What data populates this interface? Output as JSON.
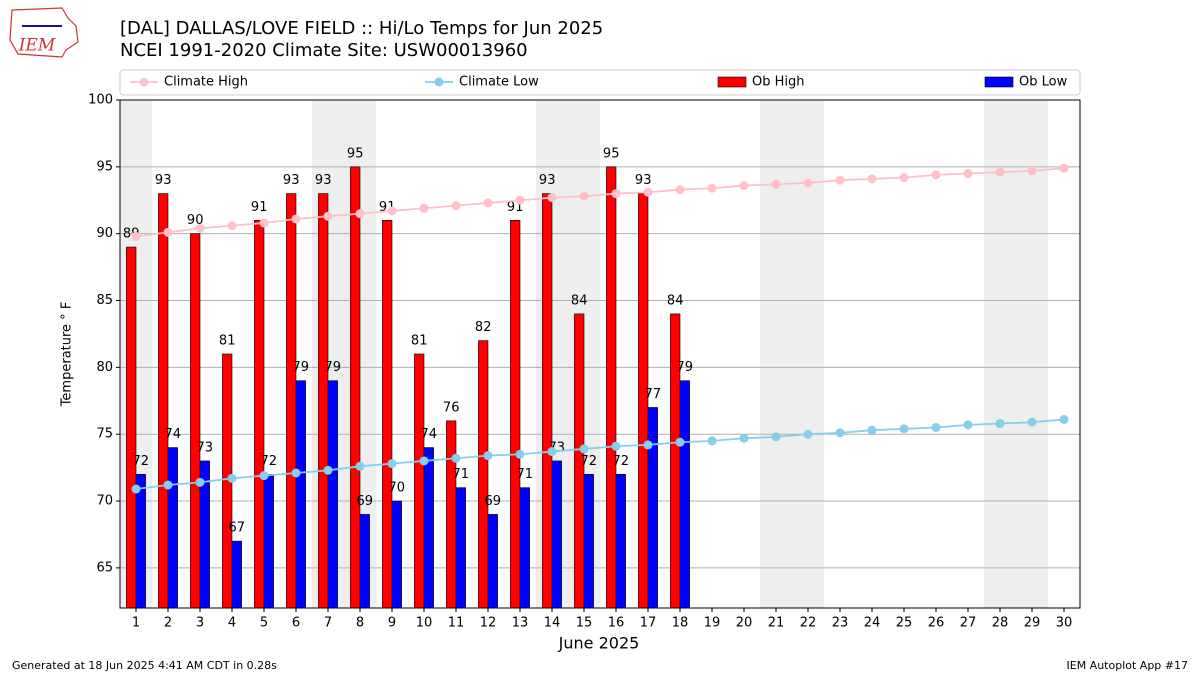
{
  "chart_data": {
    "type": "combo",
    "logo": "IEM",
    "title": "[DAL] DALLAS/LOVE FIELD :: Hi/Lo Temps for Jun 2025",
    "subtitle": "NCEI 1991-2020 Climate Site: USW00013960",
    "xlabel": "June 2025",
    "ylabel": "Temperature ° F",
    "footer_left": "Generated at 18 Jun 2025 4:41 AM CDT in 0.28s",
    "footer_right": "IEM Autoplot App #17",
    "x": [
      1,
      2,
      3,
      4,
      5,
      6,
      7,
      8,
      9,
      10,
      11,
      12,
      13,
      14,
      15,
      16,
      17,
      18,
      19,
      20,
      21,
      22,
      23,
      24,
      25,
      26,
      27,
      28,
      29,
      30
    ],
    "xlim": [
      0.5,
      30.5
    ],
    "xticks": [
      1,
      2,
      3,
      4,
      5,
      6,
      7,
      8,
      9,
      10,
      11,
      12,
      13,
      14,
      15,
      16,
      17,
      18,
      19,
      20,
      21,
      22,
      23,
      24,
      25,
      26,
      27,
      28,
      29,
      30
    ],
    "ylim": [
      62,
      100
    ],
    "yticks": [
      65,
      70,
      75,
      80,
      85,
      90,
      95,
      100
    ],
    "grid": true,
    "legend": "top",
    "shaded_days": [
      1,
      7,
      8,
      14,
      15,
      21,
      22,
      28,
      29
    ],
    "shade_color": "#eeeeee",
    "series": [
      {
        "name": "Climate High",
        "type": "line",
        "color": "#ffc0cb",
        "values": [
          89.8,
          90.1,
          90.4,
          90.6,
          90.8,
          91.1,
          91.3,
          91.5,
          91.7,
          91.9,
          92.1,
          92.3,
          92.5,
          92.7,
          92.8,
          93.0,
          93.1,
          93.3,
          93.4,
          93.6,
          93.7,
          93.8,
          94.0,
          94.1,
          94.2,
          94.4,
          94.5,
          94.6,
          94.7,
          94.9
        ]
      },
      {
        "name": "Climate Low",
        "type": "line",
        "color": "#87ceeb",
        "values": [
          70.9,
          71.2,
          71.4,
          71.7,
          71.9,
          72.1,
          72.3,
          72.6,
          72.8,
          73.0,
          73.2,
          73.4,
          73.5,
          73.7,
          73.9,
          74.1,
          74.2,
          74.4,
          74.5,
          74.7,
          74.8,
          75.0,
          75.1,
          75.3,
          75.4,
          75.5,
          75.7,
          75.8,
          75.9,
          76.1
        ]
      },
      {
        "name": "Ob High",
        "type": "bar",
        "color": "#ff0000",
        "values": [
          89,
          93,
          90,
          81,
          91,
          93,
          93,
          95,
          91,
          81,
          76,
          82,
          91,
          93,
          84,
          95,
          93,
          84,
          null,
          null,
          null,
          null,
          null,
          null,
          null,
          null,
          null,
          null,
          null,
          null
        ]
      },
      {
        "name": "Ob Low",
        "type": "bar",
        "color": "#0000ff",
        "values": [
          72,
          74,
          73,
          67,
          72,
          79,
          79,
          69,
          70,
          74,
          71,
          69,
          71,
          73,
          72,
          72,
          77,
          79,
          null,
          null,
          null,
          null,
          null,
          null,
          null,
          null,
          null,
          null,
          null,
          null
        ]
      }
    ]
  }
}
